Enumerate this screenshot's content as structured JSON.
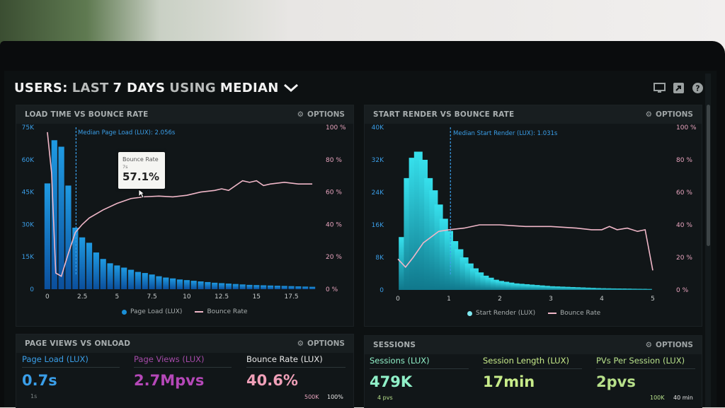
{
  "header": {
    "title_users": "USERS:",
    "title_last": "LAST",
    "title_days": "7 DAYS",
    "title_using": "USING",
    "title_median": "MEDIAN",
    "dropdown_icon": "chevron-down-icon",
    "icons": [
      "monitor-icon",
      "share-icon",
      "help-icon"
    ]
  },
  "options_label": "OPTIONS",
  "panels": {
    "load_time": {
      "title": "LOAD TIME VS BOUNCE RATE"
    },
    "start_render": {
      "title": "START RENDER VS BOUNCE RATE"
    },
    "page_views": {
      "title": "PAGE VIEWS VS ONLOAD"
    },
    "sessions": {
      "title": "SESSIONS"
    }
  },
  "tooltip": {
    "label": "Bounce Rate",
    "sub": "7s",
    "value": "57.1%"
  },
  "colors": {
    "bar1": "#1a8fd6",
    "bar2": "#2ad0e0",
    "bounce": "#f0b7c8",
    "blue_text": "#3a9ee8",
    "pink_text": "#f0a0b8",
    "purple_text": "#b548b8",
    "green_text": "#b7e08a",
    "mint_text": "#90f0c8"
  },
  "chart_data": [
    {
      "type": "bar",
      "title": "LOAD TIME VS BOUNCE RATE",
      "median_label": "Median Page Load (LUX): 2.056s",
      "median_x": 2.056,
      "x": [
        0,
        0.5,
        1,
        1.5,
        2,
        2.5,
        3,
        3.5,
        4,
        4.5,
        5,
        5.5,
        6,
        6.5,
        7,
        7.5,
        8,
        8.5,
        9,
        9.5,
        10,
        10.5,
        11,
        11.5,
        12,
        12.5,
        13,
        13.5,
        14,
        14.5,
        15,
        15.5,
        16,
        16.5,
        17,
        17.5,
        18,
        18.5,
        19
      ],
      "series": [
        {
          "name": "Page Load (LUX)",
          "axis": "left",
          "values": [
            49000,
            69000,
            66000,
            48000,
            28500,
            24000,
            21500,
            17000,
            14000,
            12000,
            11000,
            10000,
            9000,
            8000,
            7500,
            6800,
            6000,
            5400,
            5000,
            4500,
            4200,
            3900,
            3600,
            3300,
            3000,
            2800,
            2600,
            2400,
            2200,
            2000,
            1900,
            1800,
            1700,
            1600,
            1500,
            1400,
            1300,
            1200,
            1100
          ]
        },
        {
          "name": "Bounce Rate",
          "axis": "right",
          "points": [
            [
              0,
              97
            ],
            [
              0.3,
              72
            ],
            [
              0.6,
              10
            ],
            [
              1.0,
              8
            ],
            [
              1.5,
              22
            ],
            [
              2.0,
              35
            ],
            [
              2.5,
              40
            ],
            [
              3,
              44
            ],
            [
              4,
              49
            ],
            [
              5,
              53
            ],
            [
              6,
              56
            ],
            [
              7,
              57.1
            ],
            [
              8,
              57.5
            ],
            [
              9,
              57
            ],
            [
              10,
              58
            ],
            [
              11,
              60
            ],
            [
              12,
              61
            ],
            [
              12.5,
              62
            ],
            [
              13,
              61
            ],
            [
              14,
              67
            ],
            [
              14.5,
              66
            ],
            [
              15,
              67
            ],
            [
              15.5,
              64
            ],
            [
              16,
              65
            ],
            [
              17,
              66
            ],
            [
              18,
              65
            ],
            [
              19,
              65
            ]
          ]
        }
      ],
      "xticks": [
        "0",
        "2.5",
        "5",
        "7.5",
        "10",
        "12.5",
        "15",
        "17.5"
      ],
      "xtick_values": [
        0,
        2.5,
        5,
        7.5,
        10,
        12.5,
        15,
        17.5
      ],
      "yticks_left": [
        "75K",
        "60K",
        "45K",
        "30K",
        "15K",
        "0"
      ],
      "yticks_right": [
        "100 %",
        "80 %",
        "60 %",
        "40 %",
        "20 %",
        "0 %"
      ],
      "ylim_left": [
        0,
        75000
      ],
      "ylim_right": [
        0,
        100
      ],
      "xlim": [
        -0.25,
        19.25
      ],
      "legend": [
        "Page Load (LUX)",
        "Bounce Rate"
      ]
    },
    {
      "type": "bar",
      "title": "START RENDER VS BOUNCE RATE",
      "median_label": "Median Start Render (LUX): 1.031s",
      "median_x": 1.031,
      "x": [
        0.1,
        0.2,
        0.3,
        0.4,
        0.5,
        0.6,
        0.7,
        0.8,
        0.9,
        1.0,
        1.1,
        1.2,
        1.3,
        1.4,
        1.5,
        1.6,
        1.7,
        1.8,
        1.9,
        2.0,
        2.1,
        2.2,
        2.3,
        2.4,
        2.5,
        2.6,
        2.7,
        2.8,
        2.9,
        3.0,
        3.1,
        3.2,
        3.3,
        3.4,
        3.5,
        3.6,
        3.7,
        3.8,
        3.9,
        4.0,
        4.1,
        4.2,
        4.3,
        4.4,
        4.5,
        4.6,
        4.7,
        4.8,
        4.9
      ],
      "series": [
        {
          "name": "Start Render (LUX)",
          "axis": "left",
          "values": [
            13000,
            27500,
            32500,
            34000,
            32000,
            27500,
            24500,
            21000,
            17500,
            14500,
            12000,
            10000,
            8000,
            6500,
            5300,
            4300,
            3500,
            3000,
            2500,
            2200,
            2000,
            1800,
            1600,
            1500,
            1400,
            1300,
            1200,
            1100,
            1000,
            900,
            850,
            800,
            750,
            700,
            650,
            600,
            550,
            500,
            450,
            400,
            380,
            360,
            340,
            320,
            300,
            280,
            260,
            240,
            220
          ]
        },
        {
          "name": "Bounce Rate",
          "axis": "right",
          "points": [
            [
              0,
              19
            ],
            [
              0.15,
              14
            ],
            [
              0.3,
              20
            ],
            [
              0.5,
              29
            ],
            [
              0.8,
              36
            ],
            [
              1.0,
              37
            ],
            [
              1.3,
              38
            ],
            [
              1.6,
              40
            ],
            [
              2.0,
              40
            ],
            [
              2.5,
              39
            ],
            [
              3,
              39
            ],
            [
              3.5,
              38
            ],
            [
              3.8,
              37
            ],
            [
              4,
              37
            ],
            [
              4.15,
              39
            ],
            [
              4.3,
              37
            ],
            [
              4.5,
              38
            ],
            [
              4.7,
              36
            ],
            [
              4.85,
              37
            ],
            [
              5.0,
              12
            ]
          ]
        }
      ],
      "xticks": [
        "0",
        "1",
        "2",
        "3",
        "4",
        "5"
      ],
      "xtick_values": [
        0,
        1,
        2,
        3,
        4,
        5
      ],
      "yticks_left": [
        "40K",
        "32K",
        "24K",
        "16K",
        "8K",
        "0"
      ],
      "yticks_right": [
        "100 %",
        "80 %",
        "60 %",
        "40 %",
        "20 %",
        "0 %"
      ],
      "ylim_left": [
        0,
        40000
      ],
      "ylim_right": [
        0,
        100
      ],
      "xlim": [
        0,
        5
      ],
      "legend": [
        "Start Render (LUX)",
        "Bounce Rate"
      ]
    }
  ],
  "page_views_metrics": [
    {
      "label": "Page Load (LUX)",
      "value": "0.7s",
      "sub": "1s"
    },
    {
      "label": "Page Views (LUX)",
      "value": "2.7Mpvs",
      "sub": ""
    },
    {
      "label": "Bounce Rate (LUX)",
      "value": "40.6%",
      "sub": ""
    }
  ],
  "page_views_corner": {
    "a": "500K",
    "b": "100%"
  },
  "session_metrics": [
    {
      "label": "Sessions (LUX)",
      "value": "479K",
      "sub": "4 pvs"
    },
    {
      "label": "Session Length (LUX)",
      "value": "17min",
      "sub": ""
    },
    {
      "label": "PVs Per Session (LUX)",
      "value": "2pvs",
      "sub": ""
    }
  ],
  "sessions_corner": {
    "a": "100K",
    "b": "40 min"
  }
}
